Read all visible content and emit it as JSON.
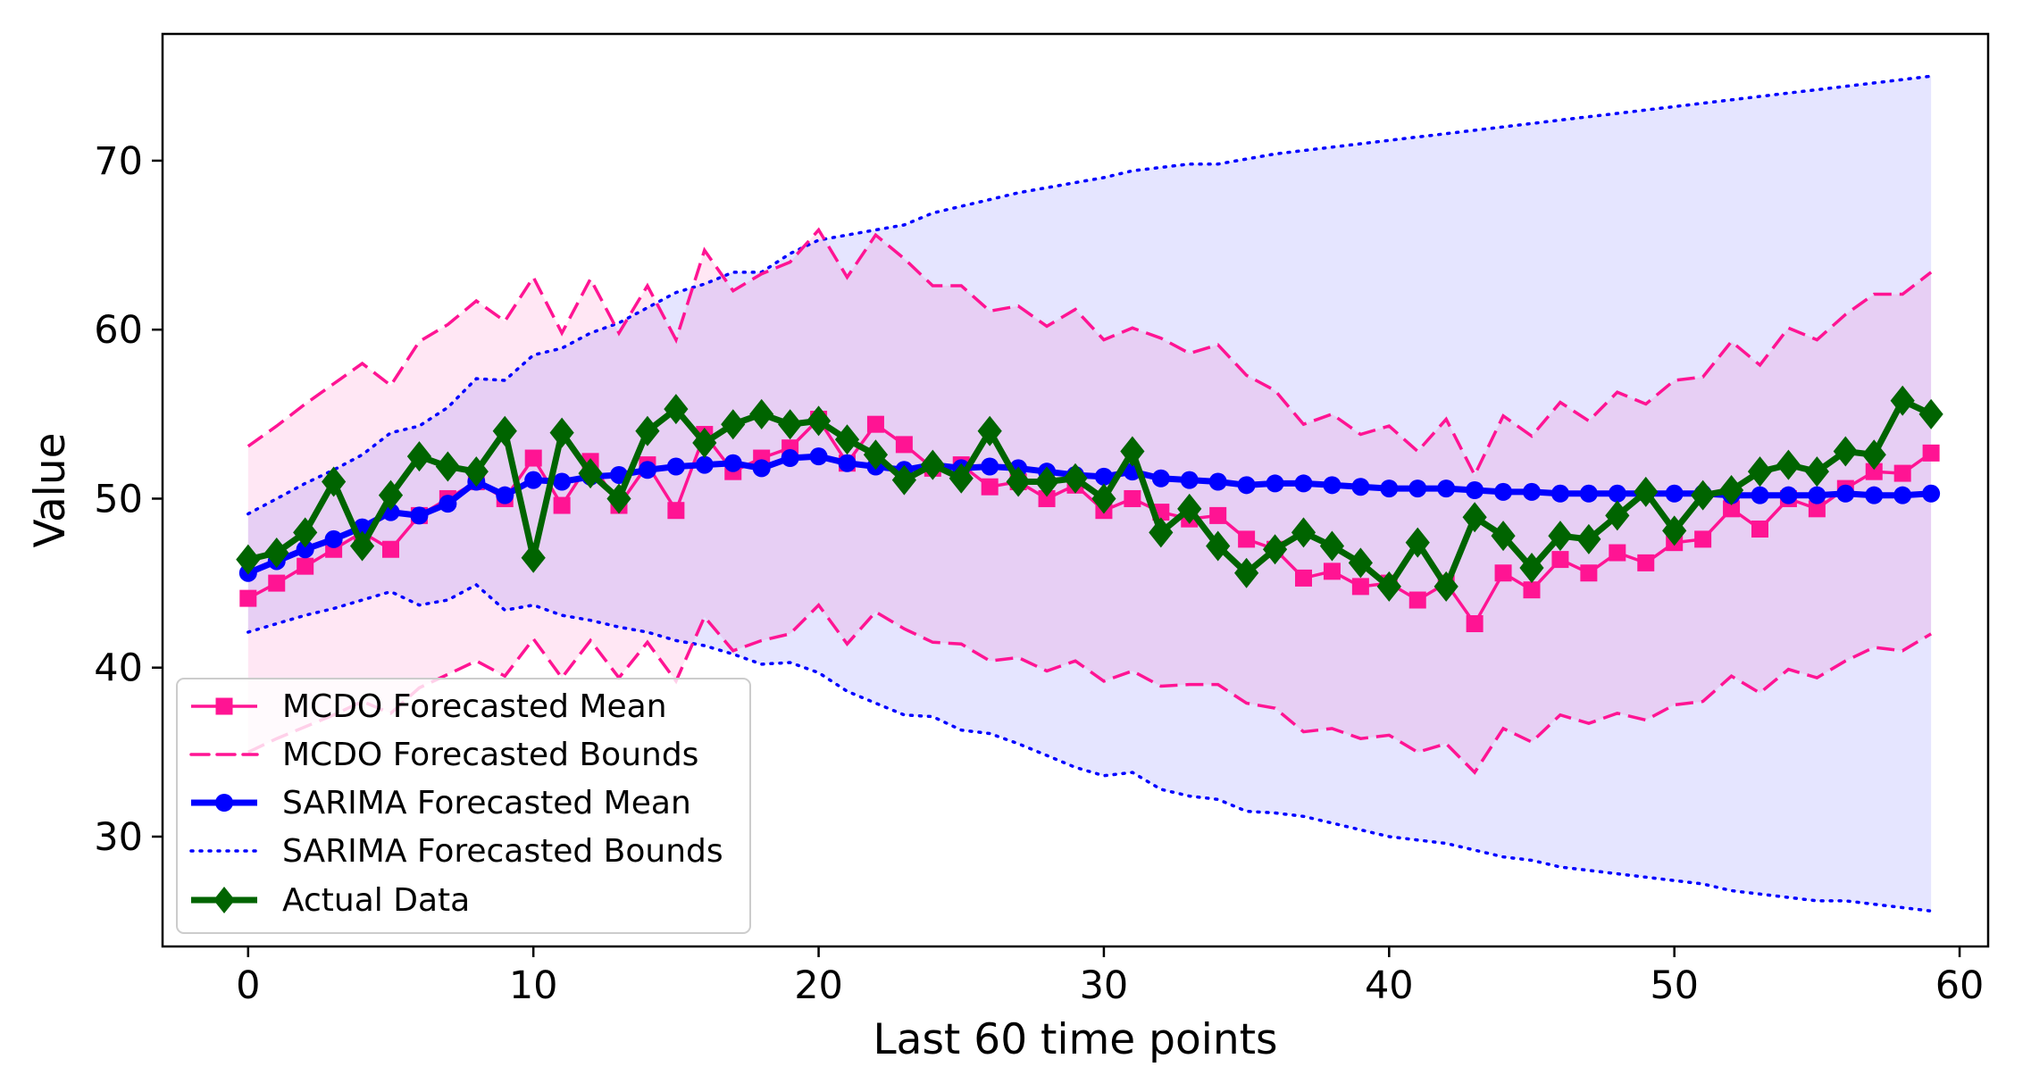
{
  "chart_data": {
    "type": "line",
    "title": "",
    "xlabel": "Last 60 time points",
    "ylabel": "Value",
    "xlim": [
      -3,
      61
    ],
    "ylim": [
      23.5,
      77.5
    ],
    "xticks": [
      0,
      10,
      20,
      30,
      40,
      50,
      60
    ],
    "yticks": [
      30,
      40,
      50,
      60,
      70
    ],
    "grid": false,
    "legend_position": "lower-left",
    "x": [
      0,
      1,
      2,
      3,
      4,
      5,
      6,
      7,
      8,
      9,
      10,
      11,
      12,
      13,
      14,
      15,
      16,
      17,
      18,
      19,
      20,
      21,
      22,
      23,
      24,
      25,
      26,
      27,
      28,
      29,
      30,
      31,
      32,
      33,
      34,
      35,
      36,
      37,
      38,
      39,
      40,
      41,
      42,
      43,
      44,
      45,
      46,
      47,
      48,
      49,
      50,
      51,
      52,
      53,
      54,
      55,
      56,
      57,
      58,
      59
    ],
    "series": [
      {
        "name": "MCDO Forecasted Mean",
        "color": "#ff1493",
        "marker": "square",
        "values": [
          44.1,
          45.0,
          46.0,
          47.0,
          48.0,
          47.0,
          49.0,
          50.0,
          51.0,
          50.0,
          52.4,
          49.6,
          52.2,
          49.6,
          52.0,
          49.3,
          53.8,
          51.6,
          52.4,
          53.0,
          54.7,
          52.1,
          54.4,
          53.2,
          51.8,
          52.0,
          50.7,
          51.0,
          50.0,
          50.8,
          49.3,
          50.0,
          49.2,
          48.8,
          49.0,
          47.6,
          47.0,
          45.3,
          45.7,
          44.8,
          45.0,
          44.0,
          45.0,
          42.6,
          45.6,
          44.6,
          46.4,
          45.6,
          46.8,
          46.2,
          47.4,
          47.6,
          49.4,
          48.2,
          50.0,
          49.4,
          50.6,
          51.6,
          51.5,
          52.7
        ]
      },
      {
        "name": "MCDO Forecasted Bounds",
        "color": "#ff1493",
        "upper": [
          53.1,
          54.3,
          55.6,
          56.8,
          58.0,
          56.7,
          59.3,
          60.3,
          61.7,
          60.5,
          63.1,
          59.8,
          63.0,
          59.8,
          62.6,
          59.4,
          64.7,
          62.3,
          63.3,
          64.0,
          65.9,
          63.1,
          65.6,
          64.2,
          62.6,
          62.6,
          61.1,
          61.4,
          60.2,
          61.2,
          59.4,
          60.1,
          59.5,
          58.6,
          59.1,
          57.3,
          56.4,
          54.4,
          55.0,
          53.8,
          54.3,
          52.8,
          54.7,
          51.4,
          54.9,
          53.7,
          55.7,
          54.6,
          56.3,
          55.6,
          57.0,
          57.2,
          59.3,
          57.9,
          60.1,
          59.4,
          60.9,
          62.1,
          62.1,
          63.4
        ],
        "lower": [
          35.0,
          35.8,
          36.5,
          37.2,
          38.0,
          37.3,
          38.8,
          39.6,
          40.4,
          39.5,
          41.7,
          39.4,
          41.6,
          39.4,
          41.5,
          39.2,
          43.0,
          41.0,
          41.6,
          42.0,
          43.7,
          41.4,
          43.3,
          42.3,
          41.5,
          41.4,
          40.4,
          40.6,
          39.8,
          40.4,
          39.2,
          39.8,
          38.9,
          39.0,
          39.0,
          37.9,
          37.6,
          36.2,
          36.4,
          35.8,
          36.0,
          35.0,
          35.5,
          33.8,
          36.4,
          35.6,
          37.2,
          36.7,
          37.3,
          36.9,
          37.8,
          38.0,
          39.5,
          38.5,
          39.9,
          39.4,
          40.4,
          41.2,
          41.0,
          42.0
        ]
      },
      {
        "name": "SARIMA Forecasted Mean",
        "color": "#0000ff",
        "marker": "circle",
        "values": [
          45.6,
          46.3,
          47.0,
          47.6,
          48.3,
          49.2,
          49.0,
          49.7,
          51.0,
          50.2,
          51.1,
          51.0,
          51.3,
          51.4,
          51.7,
          51.9,
          52.0,
          52.1,
          51.8,
          52.4,
          52.5,
          52.1,
          51.9,
          51.7,
          52.0,
          51.8,
          51.9,
          51.8,
          51.6,
          51.4,
          51.3,
          51.6,
          51.2,
          51.1,
          51.0,
          50.8,
          50.9,
          50.9,
          50.8,
          50.7,
          50.6,
          50.6,
          50.6,
          50.5,
          50.4,
          50.4,
          50.3,
          50.3,
          50.3,
          50.3,
          50.3,
          50.3,
          50.2,
          50.2,
          50.2,
          50.2,
          50.3,
          50.2,
          50.2,
          50.3
        ]
      },
      {
        "name": "SARIMA Forecasted Bounds",
        "color": "#0000ff",
        "upper": [
          49.1,
          50.0,
          50.9,
          51.7,
          52.6,
          53.9,
          54.3,
          55.4,
          57.1,
          57.0,
          58.5,
          58.9,
          59.8,
          60.4,
          61.3,
          62.2,
          62.7,
          63.4,
          63.4,
          64.5,
          65.3,
          65.6,
          65.9,
          66.2,
          66.9,
          67.3,
          67.7,
          68.1,
          68.4,
          68.7,
          69.0,
          69.4,
          69.6,
          69.8,
          69.8,
          70.1,
          70.4,
          70.6,
          70.8,
          71.0,
          71.2,
          71.4,
          71.6,
          71.8,
          72.0,
          72.2,
          72.4,
          72.6,
          72.8,
          73.0,
          73.2,
          73.4,
          73.6,
          73.8,
          74.0,
          74.2,
          74.4,
          74.6,
          74.8,
          75.0
        ],
        "lower": [
          42.1,
          42.6,
          43.1,
          43.5,
          44.0,
          44.5,
          43.7,
          44.0,
          44.9,
          43.4,
          43.7,
          43.1,
          42.8,
          42.4,
          42.1,
          41.6,
          41.3,
          40.8,
          40.2,
          40.3,
          39.7,
          38.6,
          37.9,
          37.2,
          37.1,
          36.3,
          36.1,
          35.5,
          34.8,
          34.1,
          33.6,
          33.8,
          32.8,
          32.4,
          32.2,
          31.5,
          31.4,
          31.2,
          30.8,
          30.4,
          30.0,
          29.8,
          29.6,
          29.2,
          28.8,
          28.6,
          28.2,
          28.0,
          27.8,
          27.6,
          27.4,
          27.2,
          26.8,
          26.6,
          26.4,
          26.2,
          26.2,
          26.0,
          25.8,
          25.6
        ]
      },
      {
        "name": "Actual Data",
        "color": "#006400",
        "marker": "diamond",
        "values": [
          46.4,
          46.8,
          48.0,
          51.0,
          47.2,
          50.2,
          52.5,
          51.9,
          51.6,
          54.0,
          46.5,
          53.9,
          51.5,
          50.0,
          54.0,
          55.3,
          53.3,
          54.4,
          55.0,
          54.4,
          54.6,
          53.5,
          52.6,
          51.1,
          52.0,
          51.2,
          54.0,
          51.0,
          51.0,
          51.2,
          50.0,
          52.8,
          48.0,
          49.4,
          47.2,
          45.6,
          47.0,
          48.0,
          47.2,
          46.2,
          44.8,
          47.4,
          44.8,
          48.9,
          47.8,
          45.9,
          47.8,
          47.6,
          49.0,
          50.4,
          48.1,
          50.2,
          50.5,
          51.6,
          52.0,
          51.6,
          52.8,
          52.6,
          55.8,
          55.0
        ]
      }
    ]
  }
}
